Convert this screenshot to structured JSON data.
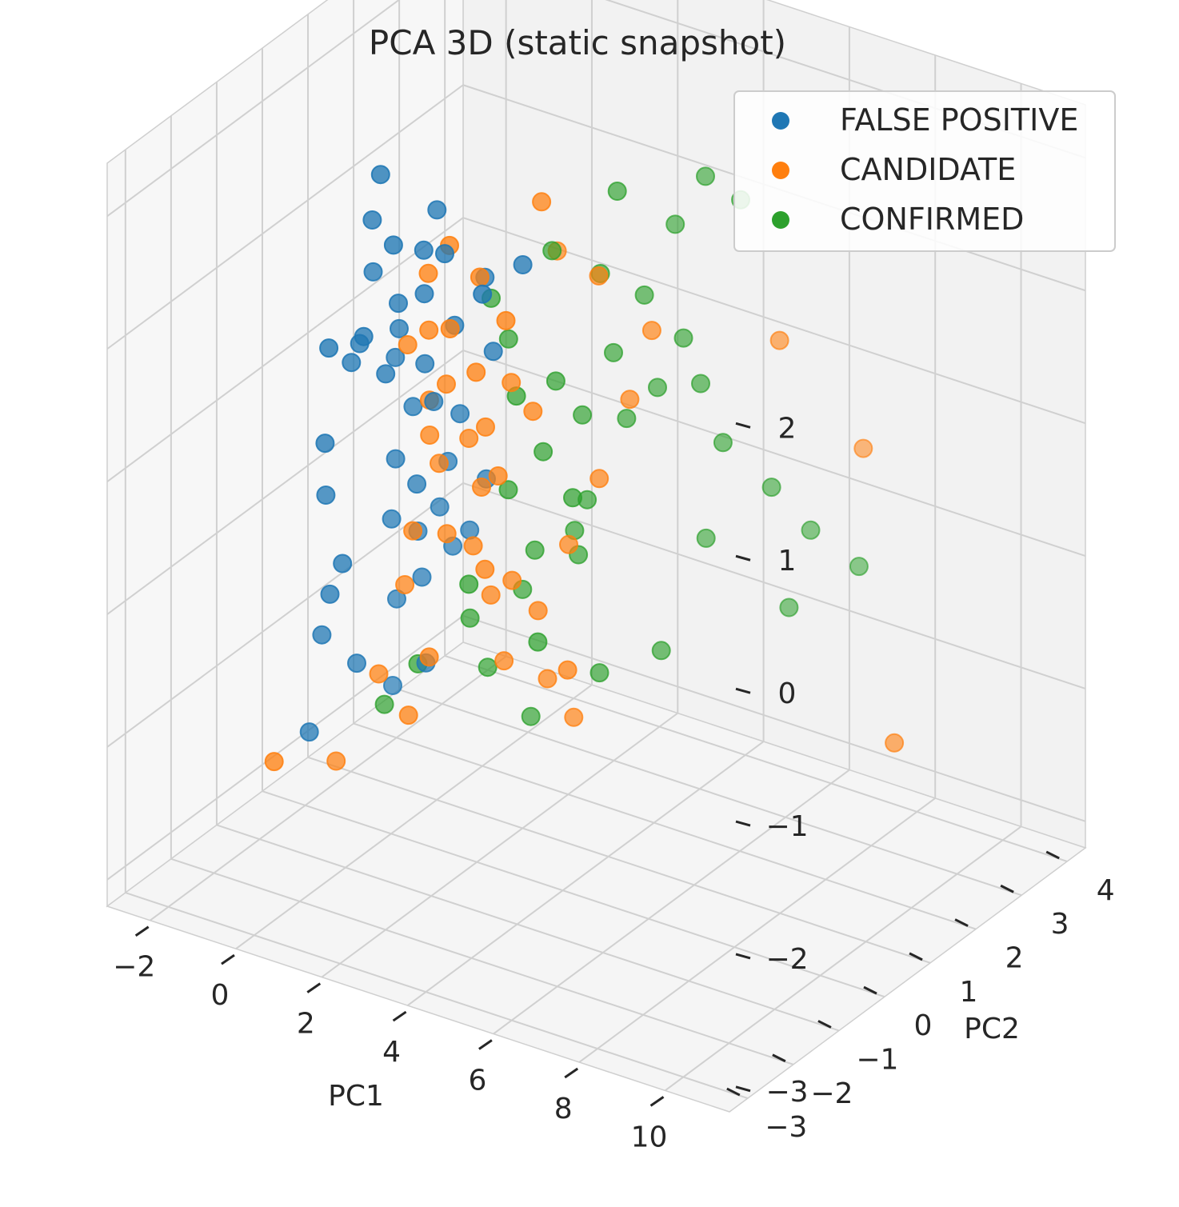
{
  "chart_data": {
    "type": "scatter",
    "title": "PCA 3D (static snapshot)",
    "xlabel": "PC1",
    "ylabel": "PC2",
    "zlabel": "",
    "x_ticks": [
      -2,
      0,
      2,
      4,
      6,
      8,
      10
    ],
    "y_ticks": [
      -3,
      -2,
      -1,
      0,
      1,
      2,
      3,
      4
    ],
    "z_ticks": [
      -3,
      -2,
      -1,
      0,
      1,
      2
    ],
    "x_tick_labels": [
      "−2",
      "0",
      "2",
      "4",
      "6",
      "8",
      "10"
    ],
    "y_tick_labels": [
      "−3",
      "−2",
      "−1",
      "0",
      "1",
      "2",
      "3",
      "4"
    ],
    "z_tick_labels": [
      "−3",
      "−2",
      "−1",
      "0",
      "1",
      "2"
    ],
    "xlim": [
      -3,
      11.5
    ],
    "ylim": [
      -3.4,
      4.4
    ],
    "zlim": [
      -3.2,
      2.4
    ],
    "grid": true,
    "legend_position": "top-right",
    "series": [
      {
        "name": "FALSE POSITIVE",
        "color": "#1f77b4",
        "points": [
          [
            -1.8,
            -0.1,
            -2.6
          ],
          [
            -1.4,
            -0.2,
            -1.8
          ],
          [
            -0.8,
            0.0,
            -2.0
          ],
          [
            -1.0,
            -0.4,
            -1.4
          ],
          [
            -0.6,
            -0.5,
            -1.1
          ],
          [
            -1.2,
            -0.3,
            -0.7
          ],
          [
            -0.9,
            -0.6,
            -0.2
          ],
          [
            -0.5,
            -0.4,
            0.4
          ],
          [
            -0.6,
            -0.8,
            0.6
          ],
          [
            -0.2,
            -0.5,
            0.6
          ],
          [
            0.0,
            -0.6,
            0.7
          ],
          [
            0.3,
            -0.4,
            0.4
          ],
          [
            -0.1,
            -0.3,
            1.1
          ],
          [
            0.2,
            -0.6,
            1.6
          ],
          [
            0.5,
            -0.7,
            2.0
          ],
          [
            0.8,
            -0.7,
            1.5
          ],
          [
            0.7,
            -0.5,
            1.0
          ],
          [
            0.4,
            -0.2,
            0.7
          ],
          [
            0.1,
            0.0,
            0.4
          ],
          [
            0.3,
            0.2,
            0.0
          ],
          [
            0.0,
            0.1,
            -0.4
          ],
          [
            0.6,
            0.0,
            -0.5
          ],
          [
            -0.2,
            0.2,
            -0.9
          ],
          [
            0.4,
            0.3,
            -1.3
          ],
          [
            0.6,
            0.2,
            -1.9
          ],
          [
            1.0,
            -0.2,
            0.5
          ],
          [
            1.2,
            -0.4,
            1.1
          ],
          [
            1.4,
            -0.6,
            1.5
          ],
          [
            1.1,
            -0.1,
            0.2
          ],
          [
            0.9,
            0.4,
            -0.4
          ],
          [
            1.6,
            -0.5,
            1.8
          ],
          [
            1.8,
            -0.3,
            0.9
          ],
          [
            1.5,
            0.1,
            0.1
          ],
          [
            2.1,
            -0.8,
            1.6
          ],
          [
            2.4,
            -0.2,
            1.3
          ],
          [
            1.3,
            0.5,
            -0.9
          ],
          [
            0.2,
            0.4,
            -1.0
          ],
          [
            -0.4,
            0.5,
            -1.6
          ],
          [
            1.9,
            0.3,
            -0.4
          ],
          [
            2.7,
            -0.3,
            0.8
          ],
          [
            3.3,
            -1.1,
            1.5
          ],
          [
            3.6,
            -0.5,
            1.6
          ],
          [
            0.8,
            0.6,
            -1.1
          ],
          [
            0.6,
            0.5,
            -0.8
          ],
          [
            -0.6,
            0.6,
            -2.3
          ]
        ]
      },
      {
        "name": "CANDIDATE",
        "color": "#ff7f0e",
        "points": [
          [
            -2.3,
            -0.4,
            -2.8
          ],
          [
            -1.6,
            0.3,
            -2.9
          ],
          [
            -0.5,
            0.2,
            -2.1
          ],
          [
            0.3,
            0.1,
            -2.3
          ],
          [
            1.1,
            -0.2,
            -1.7
          ],
          [
            0.0,
            0.3,
            -1.4
          ],
          [
            0.4,
            0.1,
            -0.9
          ],
          [
            1.3,
            0.0,
            -0.8
          ],
          [
            0.8,
            0.3,
            -0.4
          ],
          [
            1.6,
            0.2,
            -0.1
          ],
          [
            2.0,
            0.1,
            -0.4
          ],
          [
            1.0,
            -0.1,
            0.2
          ],
          [
            1.5,
            -0.2,
            0.4
          ],
          [
            2.2,
            0.0,
            0.1
          ],
          [
            2.6,
            -0.1,
            -0.2
          ],
          [
            1.2,
            -0.3,
            0.8
          ],
          [
            1.8,
            -0.4,
            0.9
          ],
          [
            2.3,
            -0.3,
            0.6
          ],
          [
            2.8,
            0.0,
            0.5
          ],
          [
            3.2,
            0.1,
            0.3
          ],
          [
            1.4,
            -0.5,
            1.3
          ],
          [
            2.0,
            -0.6,
            1.6
          ],
          [
            2.6,
            -0.5,
            1.4
          ],
          [
            3.1,
            -0.4,
            1.1
          ],
          [
            0.6,
            -0.2,
            0.6
          ],
          [
            0.9,
            0.0,
            -0.1
          ],
          [
            1.7,
            0.2,
            -0.9
          ],
          [
            2.5,
            0.3,
            -1.1
          ],
          [
            3.0,
            0.4,
            -1.3
          ],
          [
            3.5,
            0.6,
            -0.8
          ],
          [
            4.0,
            0.8,
            -0.3
          ],
          [
            4.5,
            1.0,
            0.3
          ],
          [
            4.8,
            1.2,
            0.8
          ],
          [
            6.5,
            2.4,
            0.6
          ],
          [
            7.6,
            3.2,
            -0.3
          ],
          [
            3.9,
            0.2,
            -1.6
          ],
          [
            2.9,
            0.7,
            -1.9
          ],
          [
            3.3,
            0.9,
            -2.2
          ],
          [
            2.1,
            0.5,
            -1.8
          ],
          [
            2.7,
            1.1,
            1.2
          ],
          [
            3.4,
            0.1,
            1.9
          ],
          [
            4.2,
            0.6,
            1.3
          ],
          [
            9.6,
            2.0,
            -2.0
          ],
          [
            1.9,
            0.4,
            -1.3
          ],
          [
            2.4,
            -0.2,
            -0.9
          ]
        ]
      },
      {
        "name": "CONFIRMED",
        "color": "#2ca02c",
        "points": [
          [
            -0.9,
            0.7,
            -2.5
          ],
          [
            0.2,
            0.4,
            -2.0
          ],
          [
            1.2,
            0.6,
            -1.6
          ],
          [
            2.0,
            1.0,
            -1.4
          ],
          [
            2.5,
            0.8,
            -1.0
          ],
          [
            3.0,
            1.2,
            -0.9
          ],
          [
            3.4,
            1.1,
            -0.6
          ],
          [
            2.2,
            0.5,
            -0.5
          ],
          [
            2.8,
            0.7,
            -0.2
          ],
          [
            3.5,
            0.9,
            0.1
          ],
          [
            4.0,
            1.4,
            0.0
          ],
          [
            3.8,
            1.3,
            0.5
          ],
          [
            4.2,
            1.6,
            0.9
          ],
          [
            3.6,
            1.2,
            1.1
          ],
          [
            4.6,
            1.9,
            1.4
          ],
          [
            5.2,
            2.0,
            1.8
          ],
          [
            5.7,
            2.3,
            1.6
          ],
          [
            4.9,
            1.8,
            0.6
          ],
          [
            5.5,
            2.1,
            -0.2
          ],
          [
            6.1,
            2.6,
            -0.6
          ],
          [
            6.8,
            2.8,
            -0.9
          ],
          [
            7.5,
            3.2,
            -1.2
          ],
          [
            3.1,
            0.3,
            -1.5
          ],
          [
            3.9,
            0.9,
            -1.8
          ],
          [
            1.6,
            0.2,
            -1.2
          ],
          [
            2.6,
            0.3,
            0.3
          ],
          [
            3.2,
            0.6,
            0.4
          ],
          [
            4.4,
            1.7,
            0.2
          ],
          [
            5.0,
            2.2,
            -1.0
          ],
          [
            4.7,
            1.5,
            -1.7
          ],
          [
            2.3,
            0.9,
            -2.3
          ],
          [
            1.4,
            0.8,
            -2.0
          ],
          [
            3.7,
            0.5,
            -0.4
          ],
          [
            4.1,
            1.1,
            1.8
          ],
          [
            2.9,
            0.8,
            1.3
          ],
          [
            1.8,
            0.5,
            0.9
          ],
          [
            5.3,
            1.8,
            0.3
          ],
          [
            6.4,
            2.7,
            -1.5
          ],
          [
            3.3,
            1.0,
            -1.0
          ],
          [
            2.1,
            0.6,
            0.6
          ]
        ]
      }
    ]
  }
}
